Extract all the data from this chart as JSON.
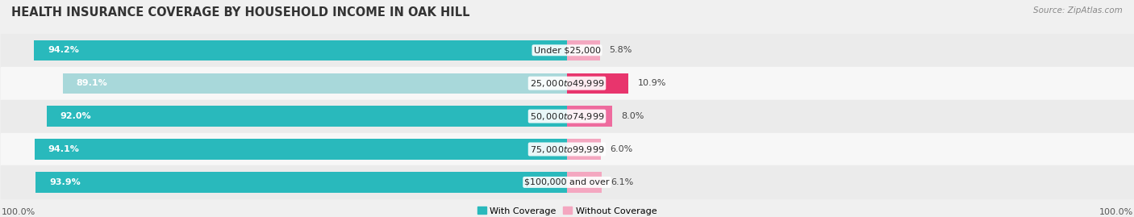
{
  "title": "HEALTH INSURANCE COVERAGE BY HOUSEHOLD INCOME IN OAK HILL",
  "source": "Source: ZipAtlas.com",
  "categories": [
    "Under $25,000",
    "$25,000 to $49,999",
    "$50,000 to $74,999",
    "$75,000 to $99,999",
    "$100,000 and over"
  ],
  "with_coverage": [
    94.2,
    89.1,
    92.0,
    94.1,
    93.9
  ],
  "without_coverage": [
    5.8,
    10.9,
    8.0,
    6.0,
    6.1
  ],
  "color_with": [
    "#29b9bc",
    "#a8d8da",
    "#29b9bc",
    "#29b9bc",
    "#29b9bc"
  ],
  "color_without": [
    "#f4a7c0",
    "#e8356d",
    "#ee6b9e",
    "#f4a7c0",
    "#f4a7c0"
  ],
  "row_bg_colors": [
    "#ebebeb",
    "#f7f7f7"
  ],
  "fig_bg_color": "#f0f0f0",
  "axis_label": "100.0%",
  "legend_with_color": "#29b9bc",
  "legend_without_color": "#f4a7c0",
  "legend_with": "With Coverage",
  "legend_without": "Without Coverage",
  "title_fontsize": 10.5,
  "source_fontsize": 7.5,
  "label_fontsize": 8.0,
  "cat_fontsize": 8.0,
  "bar_label_fontsize": 8.0,
  "figsize": [
    14.06,
    2.69
  ],
  "dpi": 100
}
